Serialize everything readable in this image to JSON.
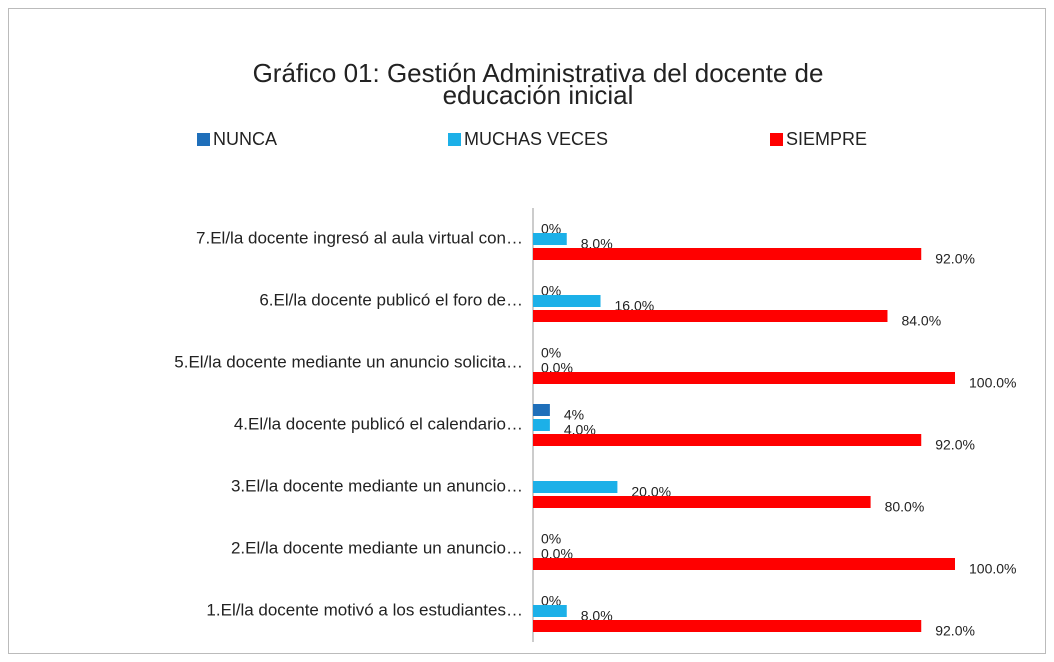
{
  "chart_data": {
    "type": "hbar",
    "title": "Gráfico 01: Gestión Administrativa del docente de educación inicial",
    "categories": [
      "7.El/la docente ingresó al aula virtual con…",
      "6.El/la docente publicó el foro de…",
      "5.El/la docente mediante un anuncio solicita…",
      "4.El/la docente publicó el calendario…",
      "3.El/la docente mediante un anuncio…",
      "2.El/la docente mediante un anuncio…",
      "1.El/la docente motivó a los estudiantes…"
    ],
    "series": [
      {
        "name": "NUNCA",
        "color": "#1f6fba",
        "values": [
          0,
          0,
          0,
          4,
          null,
          0,
          0
        ],
        "value_labels": [
          "0%",
          "0%",
          "0%",
          "4%",
          null,
          "0%",
          "0%"
        ]
      },
      {
        "name": "MUCHAS VECES",
        "color": "#1cb0e8",
        "values": [
          8,
          16,
          0,
          4,
          20,
          0,
          8
        ],
        "value_labels": [
          "8.0%",
          "16.0%",
          "0.0%",
          "4.0%",
          "20.0%",
          "0.0%",
          "8.0%"
        ]
      },
      {
        "name": "SIEMPRE",
        "color": "#ff0000",
        "values": [
          92,
          84,
          100,
          92,
          80,
          100,
          92
        ],
        "value_labels": [
          "92.0%",
          "84.0%",
          "100.0%",
          "92.0%",
          "80.0%",
          "100.0%",
          "92.0%"
        ]
      }
    ],
    "xlim": [
      0,
      100
    ],
    "legend": "top"
  }
}
